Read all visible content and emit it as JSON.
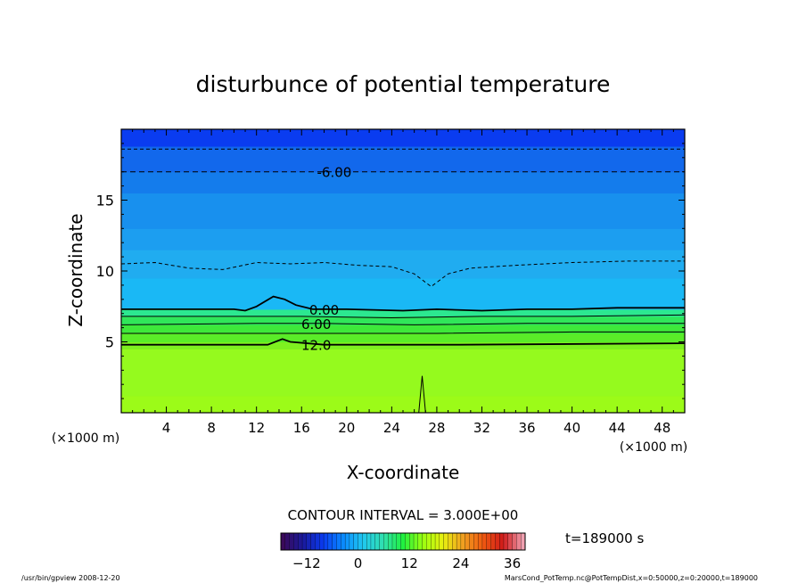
{
  "chart_data": {
    "type": "heatmap",
    "title": "disturbunce of potential temperature",
    "xlabel": "X-coordinate",
    "ylabel": "Z-coordinate",
    "x_unit": "(×1000 m)",
    "z_unit": "(×1000 m)",
    "xlim": [
      0,
      50
    ],
    "zlim": [
      0,
      20
    ],
    "x_ticks": [
      4,
      8,
      12,
      16,
      20,
      24,
      28,
      32,
      36,
      40,
      44,
      48
    ],
    "z_ticks": [
      5,
      10,
      15
    ],
    "contour_interval_text": "CONTOUR INTERVAL = 3.000E+00",
    "time_text": "t=189000 s",
    "colorbar": {
      "range": [
        -18,
        39
      ],
      "ticks": [
        -12,
        0,
        12,
        24,
        36
      ],
      "colors": [
        "#3a0a5a",
        "#1a1a9c",
        "#0a3af0",
        "#0a8aff",
        "#20c8f0",
        "#30e0b0",
        "#20f040",
        "#9cff10",
        "#e8f010",
        "#f0a020",
        "#f05a10",
        "#d01a1a",
        "#f0a0b0"
      ]
    },
    "field_layers": [
      {
        "z_from": 0,
        "z_to": 1.2,
        "value": 16.5,
        "color": "#9cfb18"
      },
      {
        "z_from": 1.2,
        "z_to": 4.5,
        "value": 15.5,
        "color": "#95fa1e"
      },
      {
        "z_from": 4.5,
        "z_to": 5.0,
        "value": 13.5,
        "color": "#7ef020"
      },
      {
        "z_from": 5.0,
        "z_to": 5.6,
        "value": 12.0,
        "color": "#5aec28"
      },
      {
        "z_from": 5.6,
        "z_to": 6.2,
        "value": 10.0,
        "color": "#3ee83a"
      },
      {
        "z_from": 6.2,
        "z_to": 6.8,
        "value": 7.5,
        "color": "#30e65a"
      },
      {
        "z_from": 6.8,
        "z_to": 7.3,
        "value": 4.5,
        "color": "#2ce890"
      },
      {
        "z_from": 7.3,
        "z_to": 9.5,
        "value": 0.0,
        "color": "#1ab8f5"
      },
      {
        "z_from": 9.5,
        "z_to": 11.5,
        "value": -2.0,
        "color": "#20acf0"
      },
      {
        "z_from": 11.5,
        "z_to": 13.0,
        "value": -3.5,
        "color": "#1c9ef0"
      },
      {
        "z_from": 13.0,
        "z_to": 15.5,
        "value": -4.5,
        "color": "#1890ee"
      },
      {
        "z_from": 15.5,
        "z_to": 17.0,
        "value": -5.5,
        "color": "#147cec"
      },
      {
        "z_from": 17.0,
        "z_to": 18.8,
        "value": -7.0,
        "color": "#1268ec"
      },
      {
        "z_from": 18.8,
        "z_to": 20.0,
        "value": -9.0,
        "color": "#0a3cf0"
      }
    ],
    "contour_labels": [
      {
        "text": "-6.00",
        "x": 18.9,
        "z": 17.0
      },
      {
        "text": "0.00",
        "x": 18.0,
        "z": 7.3
      },
      {
        "text": "6.00",
        "x": 17.3,
        "z": 6.3
      },
      {
        "text": "12.0",
        "x": 17.3,
        "z": 4.8
      }
    ],
    "contours": [
      {
        "value": -6,
        "style": "dashed",
        "points": [
          [
            0,
            17.0
          ],
          [
            50,
            17.0
          ]
        ]
      },
      {
        "value": -9,
        "style": "dashed",
        "points": [
          [
            0,
            18.6
          ],
          [
            50,
            18.6
          ]
        ]
      },
      {
        "value": -3,
        "style": "dashed",
        "points": [
          [
            0,
            10.5
          ],
          [
            3,
            10.6
          ],
          [
            6,
            10.2
          ],
          [
            9,
            10.1
          ],
          [
            12,
            10.6
          ],
          [
            15,
            10.5
          ],
          [
            18,
            10.6
          ],
          [
            21,
            10.4
          ],
          [
            24,
            10.3
          ],
          [
            26,
            9.8
          ],
          [
            27.5,
            8.9
          ],
          [
            29,
            9.8
          ],
          [
            31,
            10.2
          ],
          [
            35,
            10.4
          ],
          [
            40,
            10.6
          ],
          [
            45,
            10.7
          ],
          [
            50,
            10.7
          ]
        ]
      },
      {
        "value": 0,
        "style": "solid",
        "points": [
          [
            0,
            7.3
          ],
          [
            5,
            7.3
          ],
          [
            10,
            7.3
          ],
          [
            11,
            7.2
          ],
          [
            12,
            7.5
          ],
          [
            13.5,
            8.2
          ],
          [
            14.5,
            8.0
          ],
          [
            15.5,
            7.6
          ],
          [
            17,
            7.3
          ],
          [
            20,
            7.3
          ],
          [
            25,
            7.2
          ],
          [
            28,
            7.3
          ],
          [
            32,
            7.2
          ],
          [
            36,
            7.3
          ],
          [
            40,
            7.3
          ],
          [
            44,
            7.4
          ],
          [
            50,
            7.4
          ]
        ]
      },
      {
        "value": 3,
        "style": "solid",
        "points": [
          [
            0,
            6.8
          ],
          [
            10,
            6.8
          ],
          [
            16,
            6.8
          ],
          [
            24,
            6.7
          ],
          [
            32,
            6.8
          ],
          [
            40,
            6.8
          ],
          [
            50,
            6.9
          ]
        ]
      },
      {
        "value": 6,
        "style": "solid",
        "points": [
          [
            0,
            6.2
          ],
          [
            12,
            6.3
          ],
          [
            18,
            6.3
          ],
          [
            26,
            6.2
          ],
          [
            36,
            6.3
          ],
          [
            50,
            6.3
          ]
        ]
      },
      {
        "value": 9,
        "style": "solid",
        "points": [
          [
            0,
            5.6
          ],
          [
            12,
            5.6
          ],
          [
            18,
            5.6
          ],
          [
            28,
            5.6
          ],
          [
            40,
            5.7
          ],
          [
            50,
            5.7
          ]
        ]
      },
      {
        "value": 12,
        "style": "solid",
        "points": [
          [
            0,
            4.8
          ],
          [
            13,
            4.8
          ],
          [
            14.3,
            5.2
          ],
          [
            15,
            5.0
          ],
          [
            18,
            4.8
          ],
          [
            30,
            4.8
          ],
          [
            50,
            4.9
          ]
        ]
      },
      {
        "value": 15,
        "style": "solid",
        "points": [
          [
            26.4,
            0
          ],
          [
            26.7,
            2.6
          ],
          [
            27.0,
            0
          ]
        ]
      }
    ]
  },
  "footer": {
    "left": "/usr/bin/gpview   2008-12-20",
    "right": "MarsCond_PotTemp.nc@PotTempDist,x=0:50000,z=0:20000,t=189000"
  }
}
